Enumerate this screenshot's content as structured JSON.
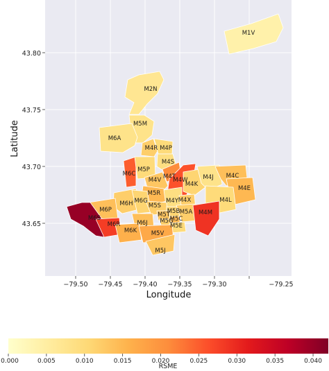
{
  "map": {
    "xlabel": "Longitude",
    "ylabel": "Latitude",
    "x_ticks": [
      "−79.50",
      "−79.45",
      "−79.40",
      "−79.35",
      "−79.30",
      "−79.25"
    ],
    "y_ticks": [
      "43.65",
      "43.70",
      "43.75",
      "43.80"
    ],
    "background": "#eaeaf2",
    "regions": [
      {
        "code": "M1V",
        "rmse": 0.004
      },
      {
        "code": "M2N",
        "rmse": 0.007
      },
      {
        "code": "M5M",
        "rmse": 0.008
      },
      {
        "code": "M6A",
        "rmse": 0.008
      },
      {
        "code": "M4R",
        "rmse": 0.012
      },
      {
        "code": "M4P",
        "rmse": 0.01
      },
      {
        "code": "M4S",
        "rmse": 0.009
      },
      {
        "code": "M6C",
        "rmse": 0.025
      },
      {
        "code": "M5P",
        "rmse": 0.01
      },
      {
        "code": "M4T",
        "rmse": 0.021
      },
      {
        "code": "M4W",
        "rmse": 0.026
      },
      {
        "code": "M4V",
        "rmse": 0.013
      },
      {
        "code": "M4K",
        "rmse": 0.011
      },
      {
        "code": "M4J",
        "rmse": 0.008
      },
      {
        "code": "M4C",
        "rmse": 0.014
      },
      {
        "code": "M4E",
        "rmse": 0.015
      },
      {
        "code": "M5R",
        "rmse": 0.015
      },
      {
        "code": "M6H",
        "rmse": 0.012
      },
      {
        "code": "M6G",
        "rmse": 0.011
      },
      {
        "code": "M4Y",
        "rmse": 0.009
      },
      {
        "code": "M4X",
        "rmse": 0.012
      },
      {
        "code": "M4L",
        "rmse": 0.01
      },
      {
        "code": "M5S",
        "rmse": 0.012
      },
      {
        "code": "M6P",
        "rmse": 0.014
      },
      {
        "code": "M5B",
        "rmse": 0.011
      },
      {
        "code": "M5A",
        "rmse": 0.012
      },
      {
        "code": "M4M",
        "rmse": 0.029
      },
      {
        "code": "M5T",
        "rmse": 0.013
      },
      {
        "code": "M6S",
        "rmse": 0.04
      },
      {
        "code": "M6R",
        "rmse": 0.028
      },
      {
        "code": "M6J",
        "rmse": 0.014
      },
      {
        "code": "M5G",
        "rmse": 0.012
      },
      {
        "code": "M5C",
        "rmse": 0.015
      },
      {
        "code": "M6K",
        "rmse": 0.016
      },
      {
        "code": "M5E",
        "rmse": 0.01
      },
      {
        "code": "M5V",
        "rmse": 0.017
      },
      {
        "code": "M5J",
        "rmse": 0.013
      }
    ]
  },
  "colorbar": {
    "label": "RSME",
    "ticks": [
      "0.000",
      "0.005",
      "0.010",
      "0.015",
      "0.020",
      "0.025",
      "0.030",
      "0.035",
      "0.040"
    ],
    "range": [
      0,
      0.042
    ],
    "colormap": "YlOrRd",
    "stops": [
      "#ffffcc",
      "#ffeda0",
      "#fed976",
      "#feb24c",
      "#fd8d3c",
      "#fc4e2a",
      "#e31a1c",
      "#bd0026",
      "#800026"
    ]
  }
}
